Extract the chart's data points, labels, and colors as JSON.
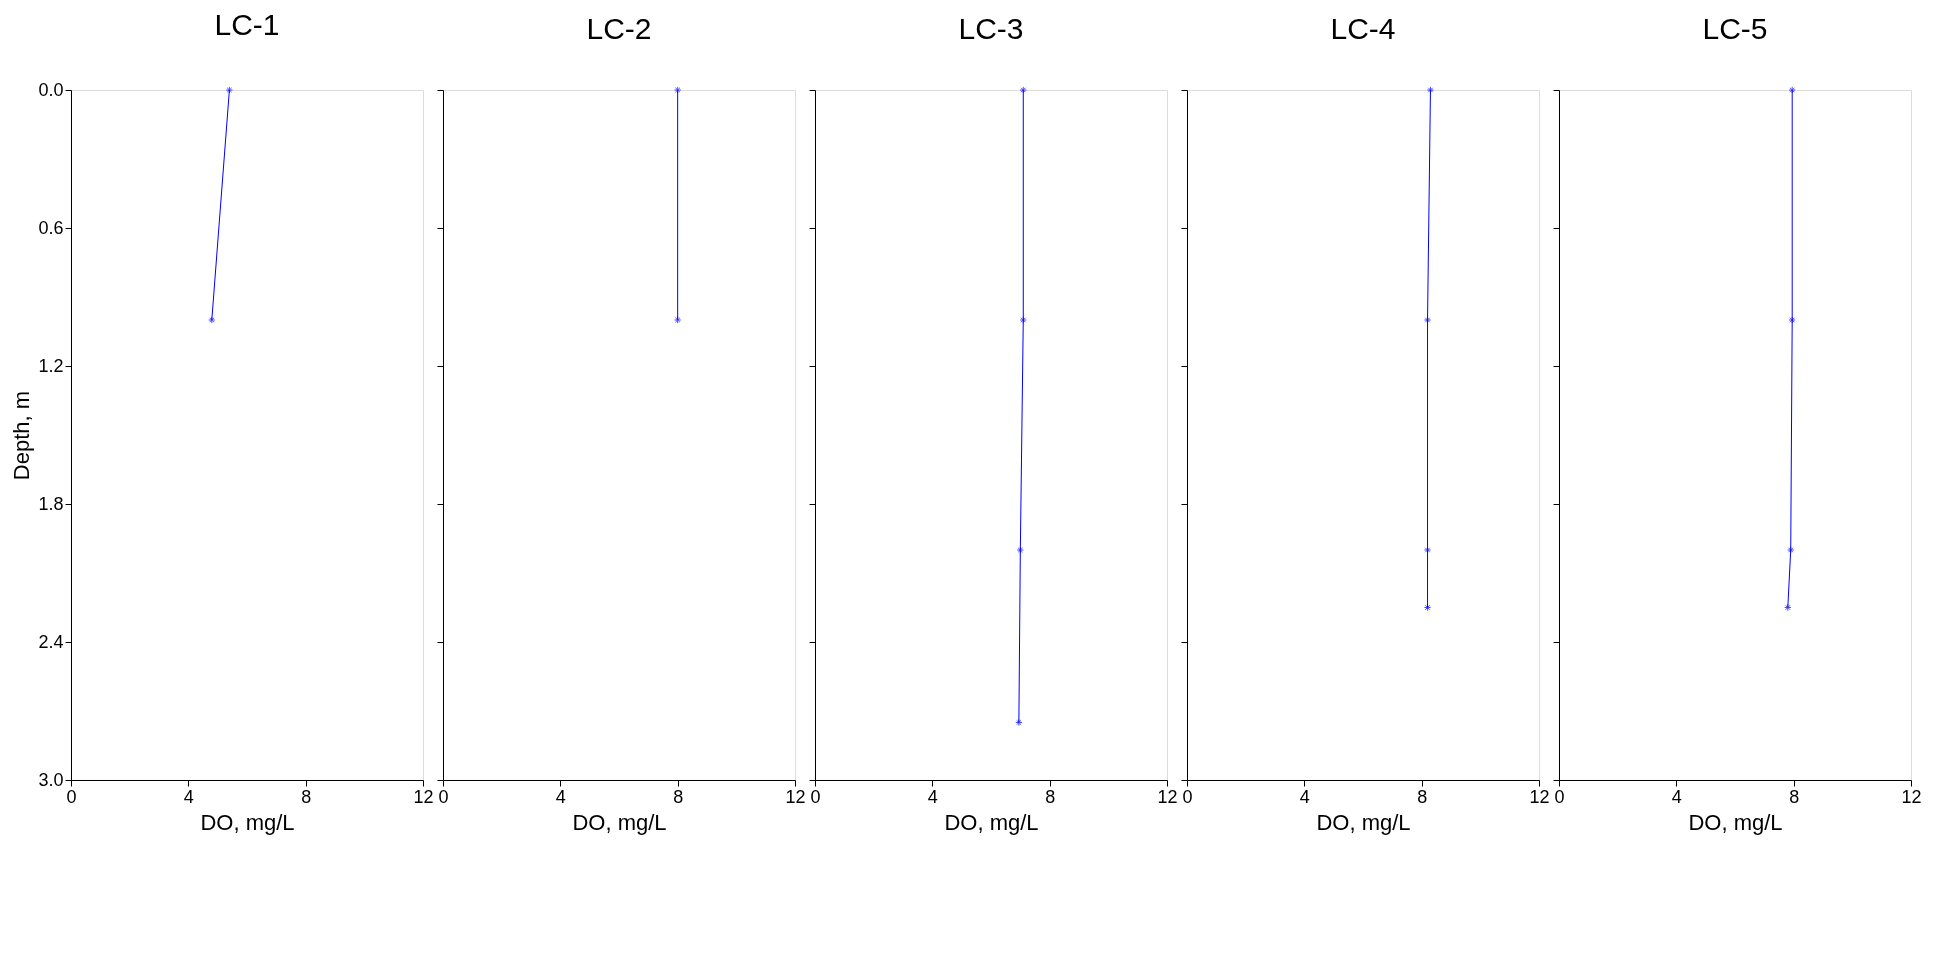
{
  "chart_data": [
    {
      "type": "line",
      "title": "LC-1",
      "xlabel": "DO, mg/L",
      "ylabel": "Depth, m",
      "xlim": [
        0,
        12
      ],
      "xticks": [
        0,
        4,
        8,
        12
      ],
      "ylim": [
        3.0,
        0.0
      ],
      "yticks": [
        {
          "value": 0,
          "label": "0.0"
        },
        0.6,
        1.2,
        1.8,
        2.4,
        {
          "value": 3,
          "label": "3.0"
        }
      ],
      "marker": "cross",
      "grid": false,
      "series": [
        {
          "color": "#0000ff",
          "x": [
            5.4,
            4.8
          ],
          "values": [
            0,
            1.0
          ]
        }
      ]
    },
    {
      "type": "line",
      "title": "LC-2",
      "xlabel": "DO, mg/L",
      "xlim": [
        0,
        12
      ],
      "xticks": [
        0,
        4,
        8,
        12
      ],
      "ylim": [
        3.0,
        0.0
      ],
      "yticks": [
        {
          "value": 0,
          "label": null
        },
        {
          "value": 0.6,
          "label": null
        },
        {
          "value": 1.2,
          "label": null
        },
        {
          "value": 1.8,
          "label": null
        },
        {
          "value": 2.4,
          "label": null
        },
        {
          "value": 3,
          "label": null
        }
      ],
      "tick_labels": "x",
      "marker": "cross",
      "grid": false,
      "series": [
        {
          "color": "#0000ff",
          "x": [
            8.0,
            8.0
          ],
          "values": [
            0,
            1.0
          ]
        }
      ]
    },
    {
      "type": "line",
      "title": "LC-3",
      "xlabel": "DO, mg/L",
      "xlim": [
        0,
        12
      ],
      "xticks": [
        0,
        4,
        8,
        12
      ],
      "ylim": [
        3.0,
        0.0
      ],
      "yticks": [
        {
          "value": 0,
          "label": null
        },
        {
          "value": 0.6,
          "label": null
        },
        {
          "value": 1.2,
          "label": null
        },
        {
          "value": 1.8,
          "label": null
        },
        {
          "value": 2.4,
          "label": null
        },
        {
          "value": 3,
          "label": null
        }
      ],
      "tick_labels": "x",
      "marker": "cross",
      "grid": false,
      "series": [
        {
          "color": "#0000ff",
          "x": [
            7.1,
            7.1,
            7.0,
            6.95
          ],
          "values": [
            0,
            1.0,
            2.0,
            2.75
          ]
        }
      ]
    },
    {
      "type": "line",
      "title": "LC-4",
      "xlabel": "DO, mg/L",
      "xlim": [
        0,
        12
      ],
      "xticks": [
        0,
        4,
        8,
        12
      ],
      "ylim": [
        3.0,
        0.0
      ],
      "yticks": [
        {
          "value": 0,
          "label": null
        },
        {
          "value": 0.6,
          "label": null
        },
        {
          "value": 1.2,
          "label": null
        },
        {
          "value": 1.8,
          "label": null
        },
        {
          "value": 2.4,
          "label": null
        },
        {
          "value": 3,
          "label": null
        }
      ],
      "tick_labels": "x",
      "marker": "cross",
      "grid": false,
      "series": [
        {
          "color": "#0000ff",
          "x": [
            8.3,
            8.2,
            8.2,
            8.2
          ],
          "values": [
            0,
            1.0,
            2.0,
            2.25
          ]
        }
      ]
    },
    {
      "type": "line",
      "title": "LC-5",
      "xlabel": "DO, mg/L",
      "xlim": [
        0,
        12
      ],
      "xticks": [
        0,
        4,
        8,
        12
      ],
      "ylim": [
        3.0,
        0.0
      ],
      "yticks": [
        {
          "value": 0,
          "label": null
        },
        {
          "value": 0.6,
          "label": null
        },
        {
          "value": 1.2,
          "label": null
        },
        {
          "value": 1.8,
          "label": null
        },
        {
          "value": 2.4,
          "label": null
        },
        {
          "value": 3,
          "label": null
        }
      ],
      "tick_labels": "x",
      "marker": "cross",
      "grid": false,
      "series": [
        {
          "color": "#0000ff",
          "x": [
            7.95,
            7.95,
            7.9,
            7.8
          ],
          "values": [
            0,
            1.0,
            2.0,
            2.25
          ]
        }
      ]
    }
  ]
}
